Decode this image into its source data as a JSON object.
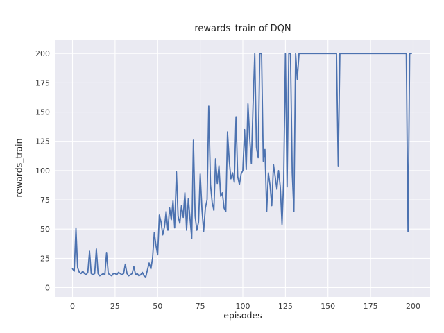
{
  "chart_data": {
    "type": "line",
    "title": "rewards_train of DQN",
    "xlabel": "episodes",
    "ylabel": "rewards_train",
    "xlim": [
      -10,
      210
    ],
    "ylim": [
      -8,
      212
    ],
    "xticks": [
      0,
      25,
      50,
      75,
      100,
      125,
      150,
      175,
      200
    ],
    "yticks": [
      0,
      25,
      50,
      75,
      100,
      125,
      150,
      175,
      200
    ],
    "grid": "on",
    "legend": "none",
    "axes_bg": "#eaeaf2",
    "grid_color": "#ffffff",
    "line_color": "#4c72b0",
    "x_note": "x value = episode index, 0 through 199",
    "values": [
      16,
      14,
      51,
      17,
      13,
      12,
      14,
      12,
      11,
      13,
      31,
      12,
      11,
      12,
      33,
      12,
      10,
      11,
      12,
      11,
      30,
      12,
      11,
      10,
      12,
      12,
      11,
      13,
      12,
      11,
      12,
      20,
      12,
      10,
      11,
      12,
      18,
      11,
      12,
      10,
      11,
      13,
      10,
      9,
      15,
      21,
      16,
      25,
      47,
      36,
      28,
      62,
      56,
      45,
      52,
      65,
      49,
      68,
      58,
      74,
      51,
      99,
      61,
      55,
      70,
      60,
      81,
      49,
      76,
      59,
      42,
      126,
      61,
      49,
      56,
      97,
      67,
      48,
      68,
      75,
      155,
      88,
      73,
      66,
      110,
      89,
      104,
      78,
      81,
      68,
      65,
      133,
      109,
      93,
      98,
      90,
      146,
      95,
      88,
      97,
      100,
      135,
      101,
      157,
      129,
      106,
      155,
      200,
      120,
      111,
      200,
      200,
      108,
      118,
      65,
      98,
      87,
      70,
      105,
      95,
      84,
      100,
      86,
      54,
      92,
      200,
      86,
      200,
      200,
      98,
      65,
      200,
      178,
      200,
      200,
      200,
      200,
      200,
      200,
      200,
      200,
      200,
      200,
      200,
      200,
      200,
      200,
      200,
      200,
      200,
      200,
      200,
      200,
      200,
      200,
      200,
      104,
      200,
      200,
      200,
      200,
      200,
      200,
      200,
      200,
      200,
      200,
      200,
      200,
      200,
      200,
      200,
      200,
      200,
      200,
      200,
      200,
      200,
      200,
      200,
      200,
      200,
      200,
      200,
      200,
      200,
      200,
      200,
      200,
      200,
      200,
      200,
      200,
      200,
      200,
      200,
      200,
      48,
      200,
      200
    ]
  }
}
